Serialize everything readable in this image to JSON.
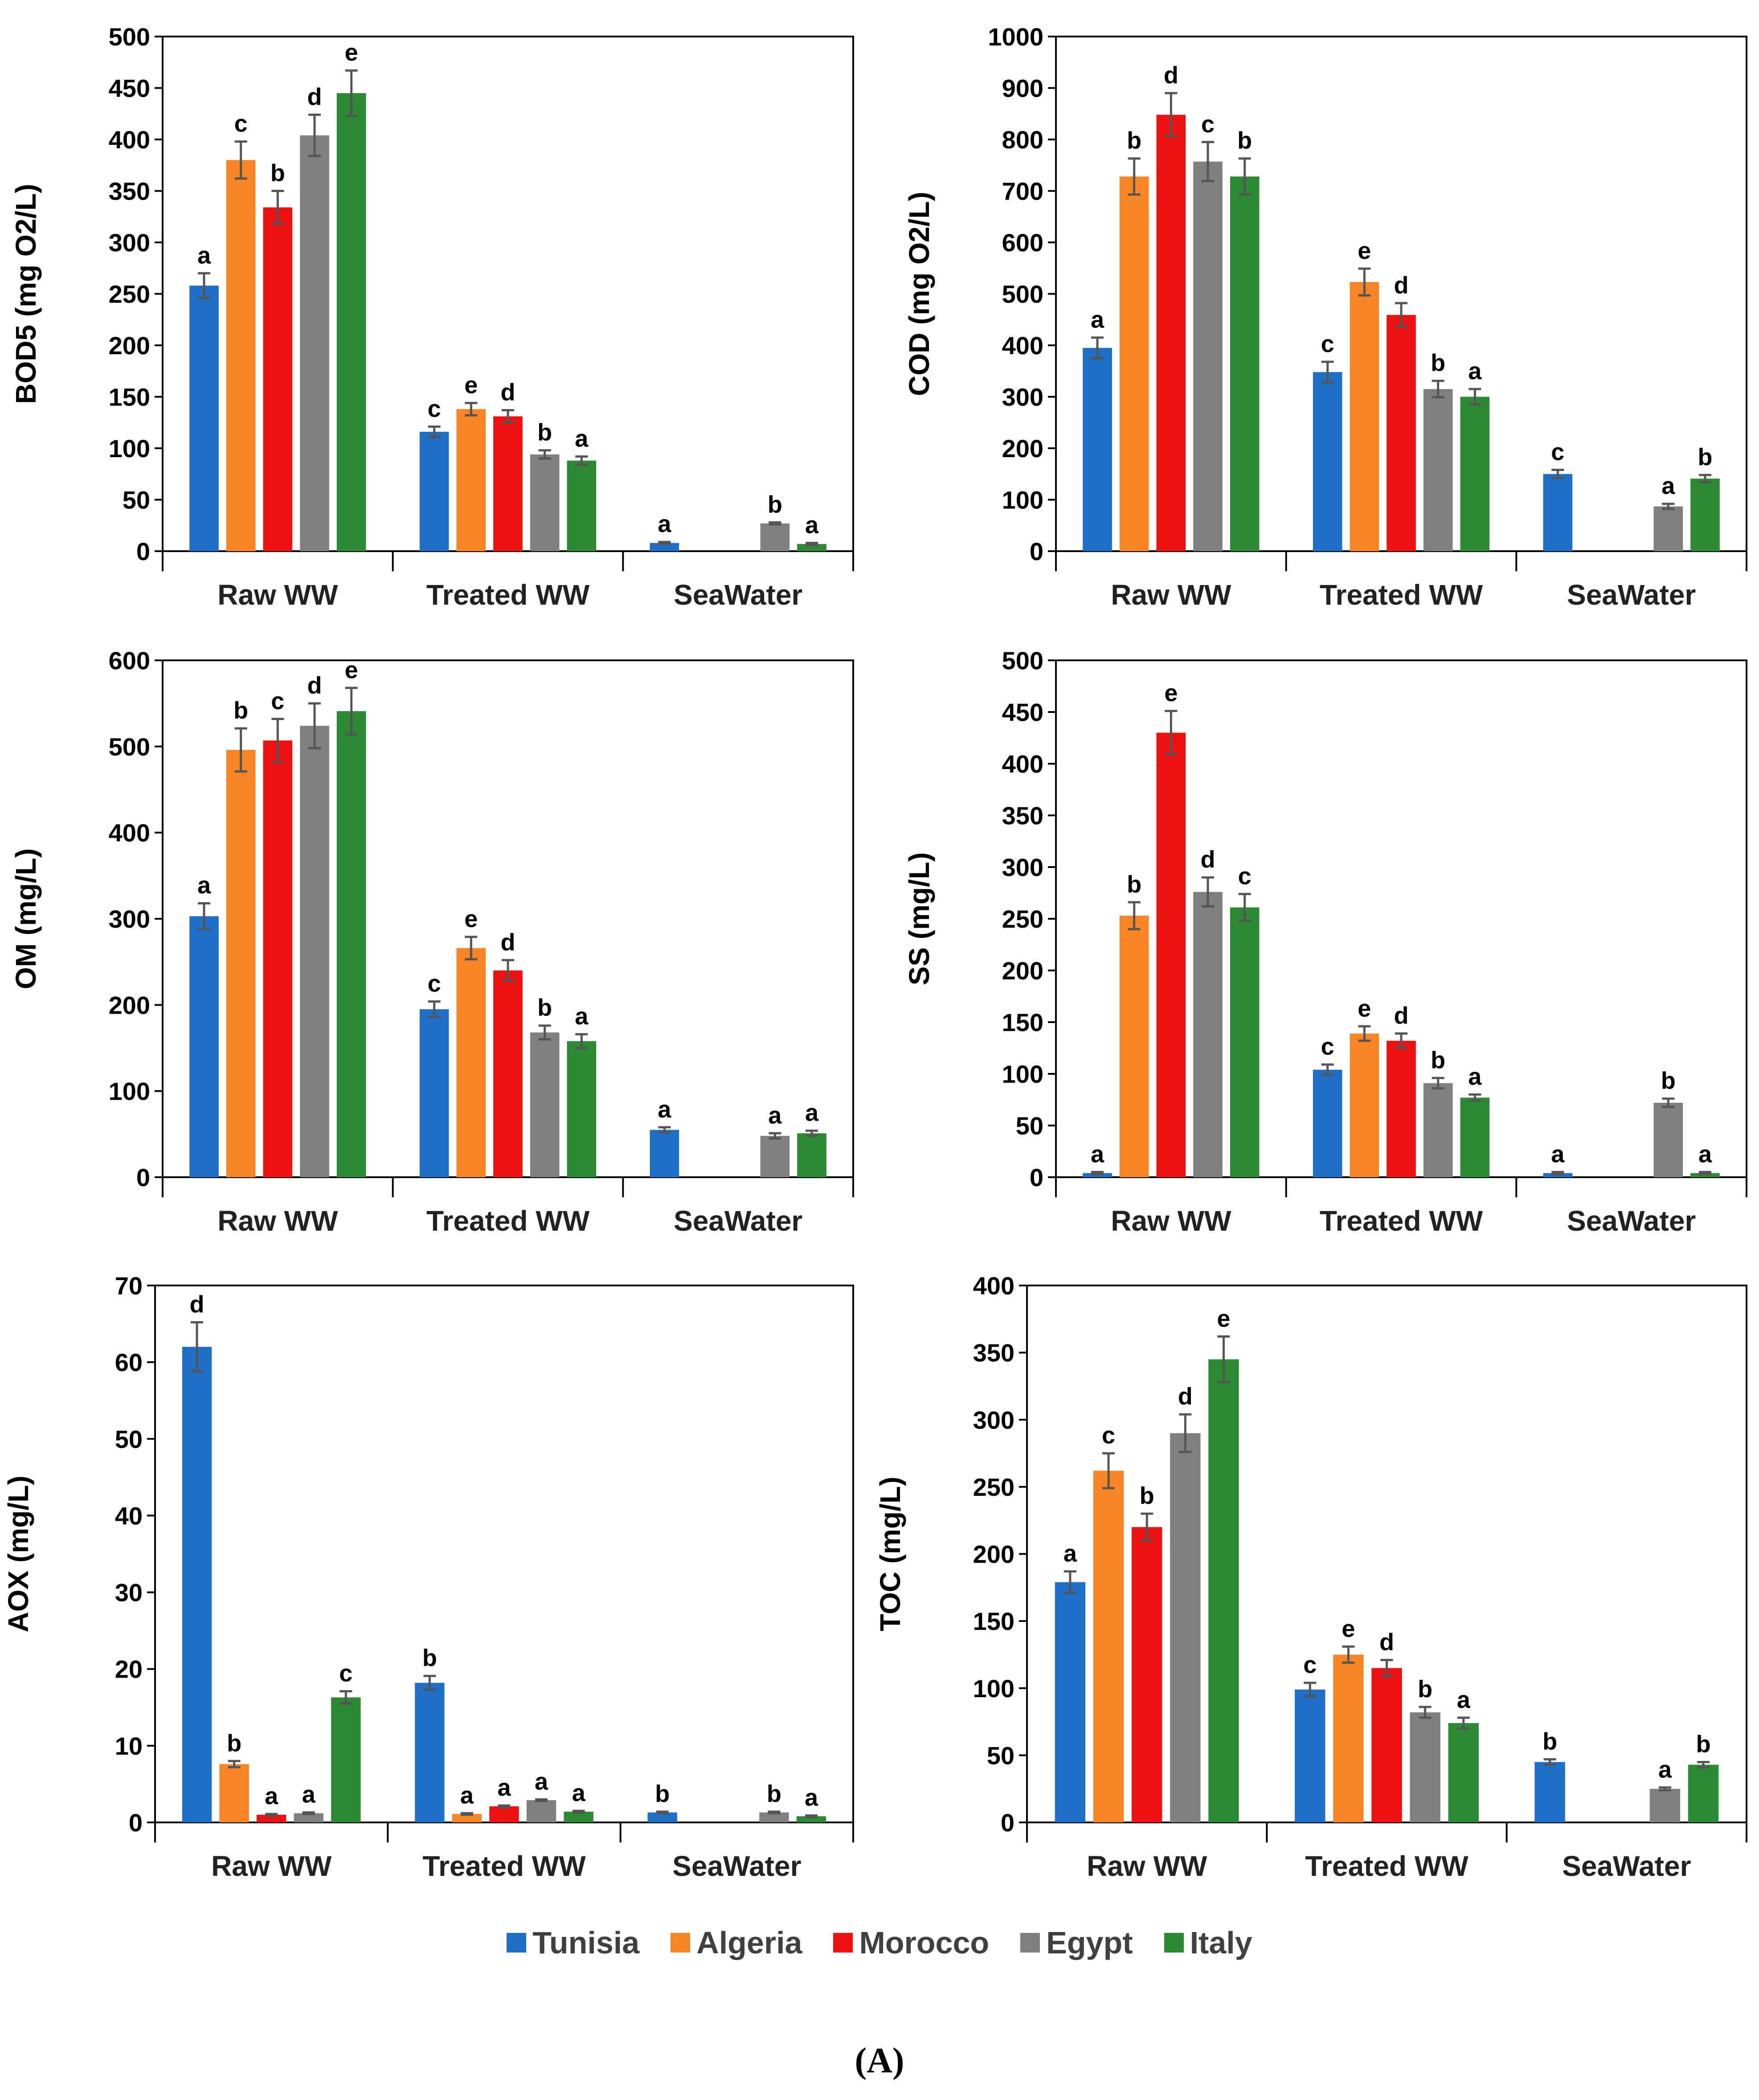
{
  "series_colors": {
    "Tunisia": "#1f6fc6",
    "Algeria": "#f78425",
    "Morocco": "#ee1111",
    "Egypt": "#7f7f7f",
    "Italy": "#2c8a34"
  },
  "legend": {
    "items": [
      {
        "label": "Tunisia",
        "color": "#1f6fc6"
      },
      {
        "label": "Algeria",
        "color": "#f78425"
      },
      {
        "label": "Morocco",
        "color": "#ee1111"
      },
      {
        "label": "Egypt",
        "color": "#7f7f7f"
      },
      {
        "label": "Italy",
        "color": "#2c8a34"
      }
    ]
  },
  "caption": "(A)",
  "chart_data": [
    {
      "type": "bar",
      "ylabel": "BOD5 (mg O2/L)",
      "ylim": [
        0,
        500
      ],
      "ystep": 50,
      "categories": [
        "Raw WW",
        "Treated WW",
        "SeaWater"
      ],
      "series": [
        {
          "name": "Tunisia",
          "values": [
            258,
            116,
            8
          ],
          "errors": [
            12,
            5,
            1
          ],
          "labels": [
            "a",
            "c",
            "a"
          ]
        },
        {
          "name": "Algeria",
          "values": [
            380,
            138,
            null
          ],
          "errors": [
            18,
            6,
            null
          ],
          "labels": [
            "c",
            "e",
            null
          ]
        },
        {
          "name": "Morocco",
          "values": [
            334,
            131,
            null
          ],
          "errors": [
            16,
            6,
            null
          ],
          "labels": [
            "b",
            "d",
            null
          ]
        },
        {
          "name": "Egypt",
          "values": [
            404,
            94,
            27
          ],
          "errors": [
            20,
            4,
            1
          ],
          "labels": [
            "d",
            "b",
            "b"
          ]
        },
        {
          "name": "Italy",
          "values": [
            445,
            88,
            7
          ],
          "errors": [
            22,
            4,
            1
          ],
          "labels": [
            "e",
            "a",
            "a"
          ]
        }
      ]
    },
    {
      "type": "bar",
      "ylabel": "COD (mg O2/L)",
      "ylim": [
        0,
        1000
      ],
      "ystep": 100,
      "categories": [
        "Raw WW",
        "Treated WW",
        "SeaWater"
      ],
      "series": [
        {
          "name": "Tunisia",
          "values": [
            395,
            348,
            150
          ],
          "errors": [
            20,
            20,
            8
          ],
          "labels": [
            "a",
            "c",
            "c"
          ]
        },
        {
          "name": "Algeria",
          "values": [
            728,
            523,
            null
          ],
          "errors": [
            35,
            26,
            null
          ],
          "labels": [
            "b",
            "e",
            null
          ]
        },
        {
          "name": "Morocco",
          "values": [
            848,
            459,
            null
          ],
          "errors": [
            42,
            23,
            null
          ],
          "labels": [
            "d",
            "d",
            null
          ]
        },
        {
          "name": "Egypt",
          "values": [
            757,
            315,
            87
          ],
          "errors": [
            38,
            16,
            5
          ],
          "labels": [
            "c",
            "b",
            "a"
          ]
        },
        {
          "name": "Italy",
          "values": [
            728,
            300,
            141
          ],
          "errors": [
            35,
            15,
            7
          ],
          "labels": [
            "b",
            "a",
            "b"
          ]
        }
      ]
    },
    {
      "type": "bar",
      "ylabel": "OM (mg/L)",
      "ylim": [
        0,
        600
      ],
      "ystep": 100,
      "categories": [
        "Raw WW",
        "Treated WW",
        "SeaWater"
      ],
      "series": [
        {
          "name": "Tunisia",
          "values": [
            303,
            195,
            55
          ],
          "errors": [
            15,
            9,
            3
          ],
          "labels": [
            "a",
            "c",
            "a"
          ]
        },
        {
          "name": "Algeria",
          "values": [
            496,
            266,
            null
          ],
          "errors": [
            25,
            13,
            null
          ],
          "labels": [
            "b",
            "e",
            null
          ]
        },
        {
          "name": "Morocco",
          "values": [
            507,
            240,
            null
          ],
          "errors": [
            25,
            12,
            null
          ],
          "labels": [
            "c",
            "d",
            null
          ]
        },
        {
          "name": "Egypt",
          "values": [
            524,
            168,
            48
          ],
          "errors": [
            26,
            8,
            3
          ],
          "labels": [
            "d",
            "b",
            "a"
          ]
        },
        {
          "name": "Italy",
          "values": [
            541,
            158,
            51
          ],
          "errors": [
            27,
            8,
            3
          ],
          "labels": [
            "e",
            "a",
            "a"
          ]
        }
      ]
    },
    {
      "type": "bar",
      "ylabel": "SS (mg/L)",
      "ylim": [
        0,
        500
      ],
      "ystep": 50,
      "categories": [
        "Raw WW",
        "Treated WW",
        "SeaWater"
      ],
      "series": [
        {
          "name": "Tunisia",
          "values": [
            4,
            104,
            4
          ],
          "errors": [
            1,
            5,
            1
          ],
          "labels": [
            "a",
            "c",
            "a"
          ]
        },
        {
          "name": "Algeria",
          "values": [
            253,
            139,
            null
          ],
          "errors": [
            13,
            7,
            null
          ],
          "labels": [
            "b",
            "e",
            null
          ]
        },
        {
          "name": "Morocco",
          "values": [
            430,
            132,
            null
          ],
          "errors": [
            21,
            7,
            null
          ],
          "labels": [
            "e",
            "d",
            null
          ]
        },
        {
          "name": "Egypt",
          "values": [
            276,
            91,
            72
          ],
          "errors": [
            14,
            5,
            4
          ],
          "labels": [
            "d",
            "b",
            "b"
          ]
        },
        {
          "name": "Italy",
          "values": [
            261,
            77,
            4
          ],
          "errors": [
            13,
            3,
            1
          ],
          "labels": [
            "c",
            "a",
            "a"
          ]
        }
      ]
    },
    {
      "type": "bar",
      "ylabel": "AOX (mg/L)",
      "ylim": [
        0,
        70
      ],
      "ystep": 10,
      "categories": [
        "Raw WW",
        "Treated WW",
        "SeaWater"
      ],
      "series": [
        {
          "name": "Tunisia",
          "values": [
            62,
            18.2,
            1.3
          ],
          "errors": [
            3.2,
            0.9,
            0.1
          ],
          "labels": [
            "d",
            "b",
            "b"
          ]
        },
        {
          "name": "Algeria",
          "values": [
            7.6,
            1.1,
            null
          ],
          "errors": [
            0.4,
            0.1,
            null
          ],
          "labels": [
            "b",
            "a",
            null
          ]
        },
        {
          "name": "Morocco",
          "values": [
            1.0,
            2.1,
            null
          ],
          "errors": [
            0.1,
            0.1,
            null
          ],
          "labels": [
            "a",
            "a",
            null
          ]
        },
        {
          "name": "Egypt",
          "values": [
            1.2,
            2.9,
            1.3
          ],
          "errors": [
            0.1,
            0.1,
            0.1
          ],
          "labels": [
            "a",
            "a",
            "b"
          ]
        },
        {
          "name": "Italy",
          "values": [
            16.3,
            1.4,
            0.8
          ],
          "errors": [
            0.8,
            0.1,
            0.1
          ],
          "labels": [
            "c",
            "a",
            "a"
          ]
        }
      ]
    },
    {
      "type": "bar",
      "ylabel": "TOC (mg/L)",
      "ylim": [
        0,
        400
      ],
      "ystep": 50,
      "categories": [
        "Raw WW",
        "Treated WW",
        "SeaWater"
      ],
      "series": [
        {
          "name": "Tunisia",
          "values": [
            179,
            99,
            45
          ],
          "errors": [
            8,
            5,
            2
          ],
          "labels": [
            "a",
            "c",
            "b"
          ]
        },
        {
          "name": "Algeria",
          "values": [
            262,
            125,
            null
          ],
          "errors": [
            13,
            6,
            null
          ],
          "labels": [
            "c",
            "e",
            null
          ]
        },
        {
          "name": "Morocco",
          "values": [
            220,
            115,
            null
          ],
          "errors": [
            10,
            6,
            null
          ],
          "labels": [
            "b",
            "d",
            null
          ]
        },
        {
          "name": "Egypt",
          "values": [
            290,
            82,
            25
          ],
          "errors": [
            14,
            4,
            1
          ],
          "labels": [
            "d",
            "b",
            "a"
          ]
        },
        {
          "name": "Italy",
          "values": [
            345,
            74,
            43
          ],
          "errors": [
            17,
            4,
            2
          ],
          "labels": [
            "e",
            "a",
            "b"
          ]
        }
      ]
    }
  ]
}
